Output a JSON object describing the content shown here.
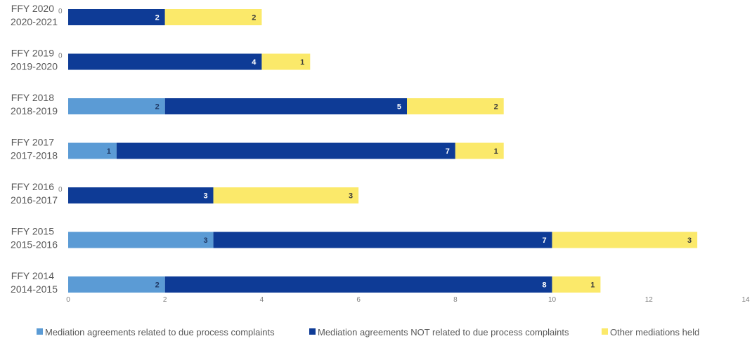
{
  "chart_data": {
    "type": "bar",
    "orientation": "horizontal",
    "stacked": true,
    "title": "",
    "xlabel": "",
    "ylabel": "",
    "xlim": [
      0,
      14
    ],
    "x_ticks": [
      0,
      2,
      4,
      6,
      8,
      10,
      12,
      14
    ],
    "grid": false,
    "legend_position": "bottom",
    "categories": [
      {
        "line1": "FFY 2020",
        "line2": "2020-2021"
      },
      {
        "line1": "FFY 2019",
        "line2": "2019-2020"
      },
      {
        "line1": "FFY 2018",
        "line2": "2018-2019"
      },
      {
        "line1": "FFY 2017",
        "line2": "2017-2018"
      },
      {
        "line1": "FFY 2016",
        "line2": "2016-2017"
      },
      {
        "line1": "FFY 2015",
        "line2": "2015-2016"
      },
      {
        "line1": "FFY 2014",
        "line2": "2014-2015"
      }
    ],
    "series": [
      {
        "name": "Mediation agreements related to due process complaints",
        "color": "#5b9bd5",
        "label_color": "#1f3864",
        "values": [
          0,
          0,
          2,
          1,
          0,
          3,
          2
        ]
      },
      {
        "name": "Mediation agreements NOT related to due process complaints",
        "color": "#0e3b96",
        "label_color": "#ffffff",
        "values": [
          2,
          4,
          5,
          7,
          3,
          7,
          8
        ]
      },
      {
        "name": "Other mediations held",
        "color": "#fbe96a",
        "label_color": "#3a3a3a",
        "values": [
          2,
          1,
          2,
          1,
          3,
          3,
          1
        ]
      }
    ]
  }
}
